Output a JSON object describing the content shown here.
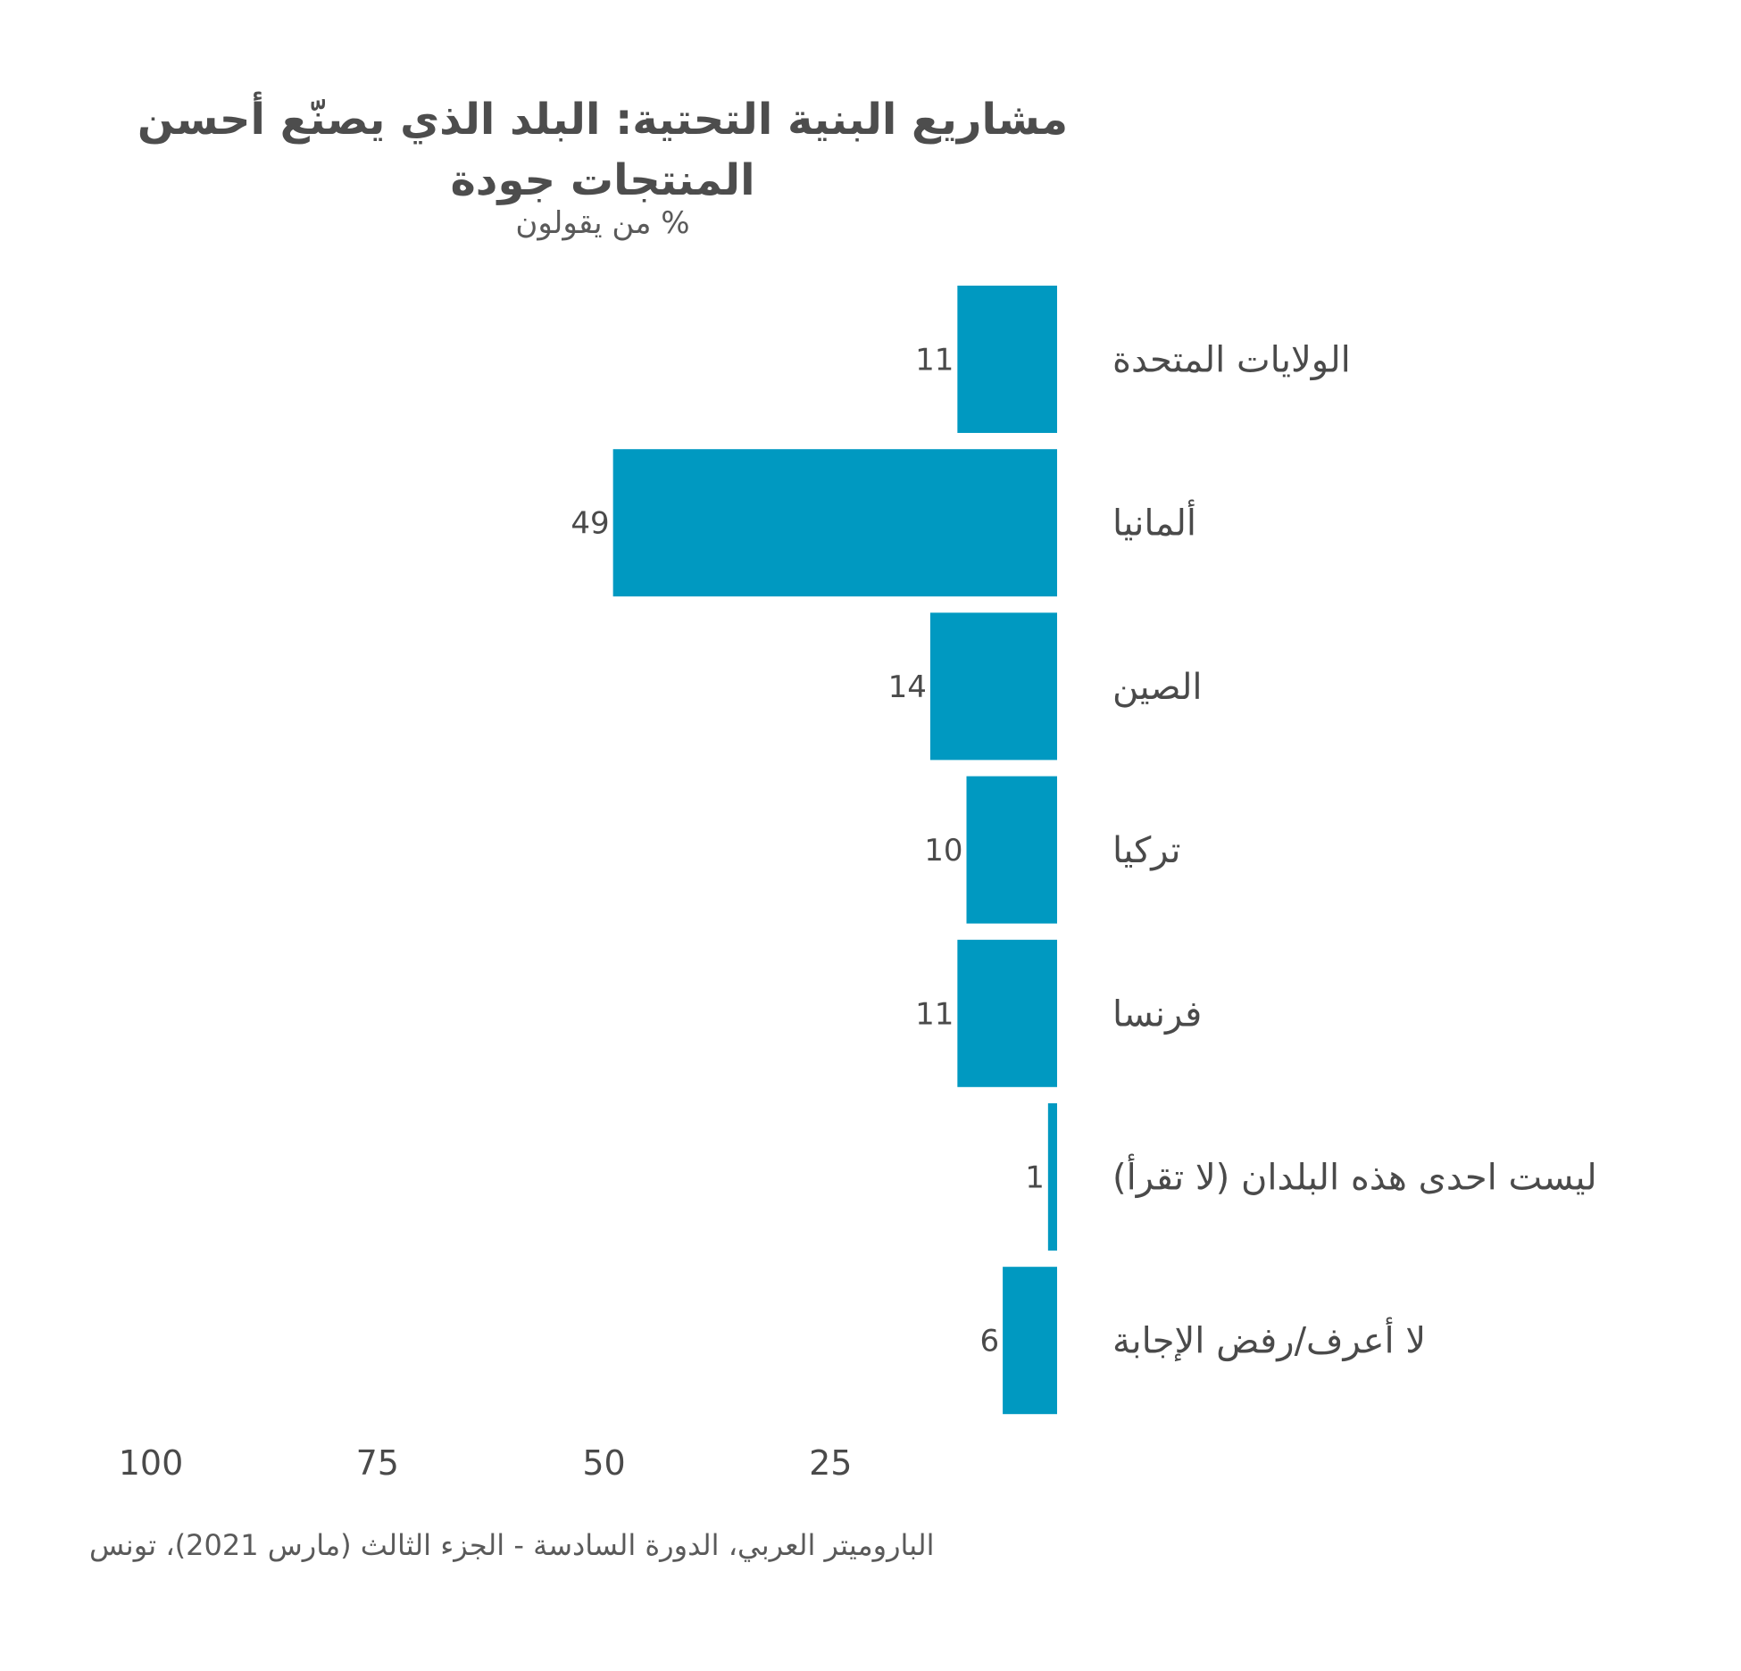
{
  "title": "مشاريع البنية التحتية: البلد الذي يصنّع أحسن المنتجات جودة",
  "subtitle": "% من يقولون",
  "source": "الباروميتر العربي، الدورة السادسة - الجزء الثالث (مارس 2021)، تونس",
  "colors": {
    "bar": "#0099c1",
    "text": "#4a4a4a"
  },
  "chart_data": {
    "type": "bar",
    "orientation": "horizontal",
    "direction": "bars extend leftward",
    "categories": [
      "الولايات المتحدة",
      "ألمانيا",
      "الصين",
      "تركيا",
      "فرنسا",
      "ليست احدى هذه البلدان (لا تقرأ)",
      "لا أعرف/رفض الإجابة"
    ],
    "values": [
      11,
      49,
      14,
      10,
      11,
      1,
      6
    ],
    "value_labels": [
      "11",
      "49",
      "14",
      "10",
      "11",
      "1",
      "6"
    ],
    "xlim": [
      0,
      100
    ],
    "ticks": [
      25,
      50,
      75,
      100
    ],
    "tick_labels": [
      "25",
      "50",
      "75",
      "100"
    ],
    "grid": false,
    "legend": "none"
  }
}
